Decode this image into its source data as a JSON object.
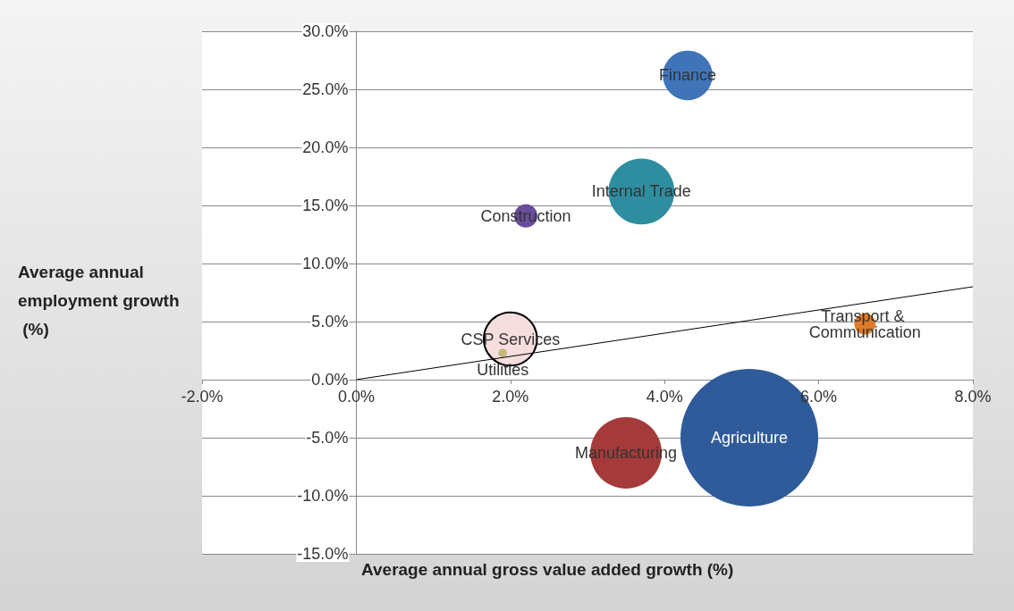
{
  "chart_data": {
    "type": "bubble",
    "xlabel": "Average annual gross value added growth (%)",
    "ylabel": "Average annual employment growth (%)",
    "xlim": [
      -2,
      8
    ],
    "xticks": [
      {
        "value": -2,
        "label": "-2.0%"
      },
      {
        "value": 0,
        "label": "0.0%"
      },
      {
        "value": 2,
        "label": "2.0%"
      },
      {
        "value": 4,
        "label": "4.0%"
      },
      {
        "value": 6,
        "label": "6.0%"
      },
      {
        "value": 8,
        "label": "8.0%"
      }
    ],
    "ylim": [
      -15,
      30
    ],
    "yticks": [
      {
        "value": -15,
        "label": "-15.0%"
      },
      {
        "value": -10,
        "label": "-10.0%"
      },
      {
        "value": -5,
        "label": "-5.0%"
      },
      {
        "value": 0,
        "label": "0.0%"
      },
      {
        "value": 5,
        "label": "5.0%"
      },
      {
        "value": 10,
        "label": "10.0%"
      },
      {
        "value": 15,
        "label": "15.0%"
      },
      {
        "value": 20,
        "label": "20.0%"
      },
      {
        "value": 25,
        "label": "25.0%"
      },
      {
        "value": 30,
        "label": "30.0%"
      }
    ],
    "grid": "y",
    "series": [
      {
        "name": "Finance",
        "color": "#3f74b9",
        "x": [
          4.3
        ],
        "values": [
          26.2
        ],
        "sizes": [
          0.13
        ]
      },
      {
        "name": "Internal Trade",
        "color": "#2e8ea0",
        "x": [
          3.7
        ],
        "values": [
          16.2
        ],
        "sizes": [
          0.23
        ]
      },
      {
        "name": "Construction",
        "color": "#6a4c9c",
        "x": [
          2.2
        ],
        "values": [
          14.1
        ],
        "sizes": [
          0.029
        ]
      },
      {
        "name": "CSP Services",
        "color": "#f7dede",
        "x": [
          2.0
        ],
        "values": [
          3.5
        ],
        "sizes": [
          0.15
        ]
      },
      {
        "name": "Utilities",
        "color": "#c4b87a",
        "x": [
          1.9
        ],
        "values": [
          2.3
        ],
        "sizes": [
          0.004
        ]
      },
      {
        "name": "Transport & Communication",
        "color": "#e07b2a",
        "x": [
          6.6
        ],
        "values": [
          4.8
        ],
        "sizes": [
          0.024
        ]
      },
      {
        "name": "Manufacturing",
        "color": "#a53a3a",
        "x": [
          3.5
        ],
        "values": [
          -6.3
        ],
        "sizes": [
          0.27
        ]
      },
      {
        "name": "Agriculture",
        "color": "#2f5b9a",
        "x": [
          5.1
        ],
        "values": [
          -5.0
        ],
        "sizes": [
          1
        ]
      },
      {
        "type": "line",
        "color": "#000000",
        "marker": "none",
        "x": [
          0,
          8
        ],
        "values": [
          0,
          8
        ]
      }
    ]
  }
}
